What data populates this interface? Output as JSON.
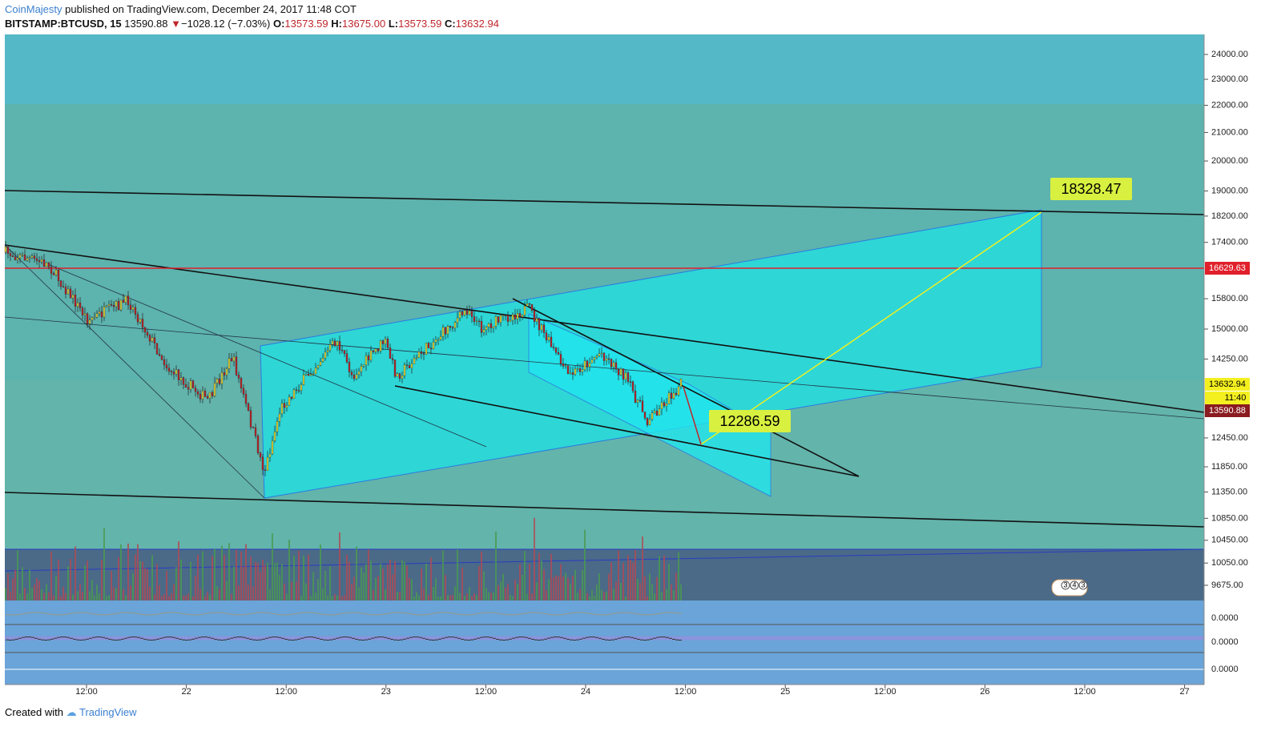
{
  "header": {
    "author": "CoinMajesty",
    "published": "published on TradingView.com, December 24, 2017 11:48 COT",
    "symbol": "BITSTAMP:BTCUSD, 15",
    "last": "13590.88",
    "arrow": "▼",
    "change": "−1028.12 (−7.03%)",
    "open_label": "O:",
    "open": "13573.59",
    "high_label": "H:",
    "high": "13675.00",
    "low_label": "L:",
    "low": "13573.59",
    "close_label": "C:",
    "close": "13632.94"
  },
  "price_axis": [
    {
      "value": 24000,
      "label": "24000.00"
    },
    {
      "value": 23000,
      "label": "23000.00"
    },
    {
      "value": 22000,
      "label": "22000.00"
    },
    {
      "value": 21000,
      "label": "21000.00"
    },
    {
      "value": 20000,
      "label": "20000.00"
    },
    {
      "value": 19000,
      "label": "19000.00"
    },
    {
      "value": 18200,
      "label": "18200.00"
    },
    {
      "value": 17400,
      "label": "17400.00"
    },
    {
      "value": 15800,
      "label": "15800.00"
    },
    {
      "value": 15000,
      "label": "15000.00"
    },
    {
      "value": 14250,
      "label": "14250.00"
    },
    {
      "value": 12450,
      "label": "12450.00"
    },
    {
      "value": 11850,
      "label": "11850.00"
    },
    {
      "value": 11350,
      "label": "11350.00"
    },
    {
      "value": 10850,
      "label": "10850.00"
    },
    {
      "value": 10450,
      "label": "10450.00"
    },
    {
      "value": 10050,
      "label": "10050.00"
    },
    {
      "value": 9675,
      "label": "9675.00"
    }
  ],
  "price_tags": {
    "level": "16629.63",
    "close": "13632.94",
    "countdown": "11:40",
    "last": "13590.88"
  },
  "time_axis": [
    "12:00",
    "22",
    "12:00",
    "23",
    "12:00",
    "24",
    "12:00",
    "25",
    "12:00",
    "26",
    "12:00",
    "27"
  ],
  "annotations": {
    "target": "18328.47",
    "support": "12286.59"
  },
  "indicator_values": [
    "0.0000",
    "0.0000",
    "0.0000"
  ],
  "badge": [
    "3",
    "4",
    "3"
  ],
  "footer": {
    "created": "Created with",
    "brand": "TradingView"
  }
}
